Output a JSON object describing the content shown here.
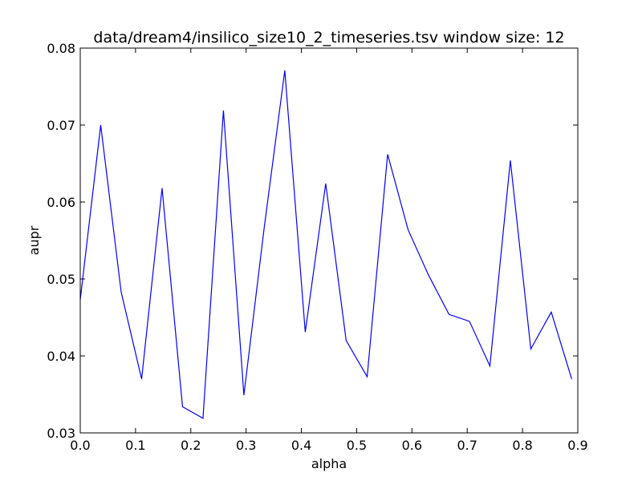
{
  "chart_data": {
    "type": "line",
    "title": "data/dream4/insilico_size10_2_timeseries.tsv window size: 12",
    "xlabel": "alpha",
    "ylabel": "aupr",
    "xlim": [
      0.0,
      0.9
    ],
    "ylim": [
      0.03,
      0.08
    ],
    "x_ticks": [
      0.0,
      0.1,
      0.2,
      0.3,
      0.4,
      0.5,
      0.6,
      0.7,
      0.8,
      0.9
    ],
    "x_tick_labels": [
      "0.0",
      "0.1",
      "0.2",
      "0.3",
      "0.4",
      "0.5",
      "0.6",
      "0.7",
      "0.8",
      "0.9"
    ],
    "y_ticks": [
      0.03,
      0.04,
      0.05,
      0.06,
      0.07,
      0.08
    ],
    "y_tick_labels": [
      "0.03",
      "0.04",
      "0.05",
      "0.06",
      "0.07",
      "0.08"
    ],
    "grid": false,
    "series": [
      {
        "color": "#0000ff",
        "x": [
          0.0,
          0.037,
          0.074,
          0.111,
          0.148,
          0.185,
          0.222,
          0.259,
          0.296,
          0.333,
          0.37,
          0.407,
          0.444,
          0.481,
          0.519,
          0.556,
          0.593,
          0.63,
          0.667,
          0.704,
          0.741,
          0.778,
          0.815,
          0.852,
          0.889
        ],
        "y": [
          0.0473,
          0.07,
          0.0483,
          0.037,
          0.0618,
          0.0334,
          0.0319,
          0.0719,
          0.0349,
          0.0568,
          0.0771,
          0.0431,
          0.0624,
          0.042,
          0.0373,
          0.0662,
          0.0564,
          0.0505,
          0.0454,
          0.0445,
          0.0387,
          0.0654,
          0.0409,
          0.0457,
          0.037
        ]
      }
    ]
  }
}
